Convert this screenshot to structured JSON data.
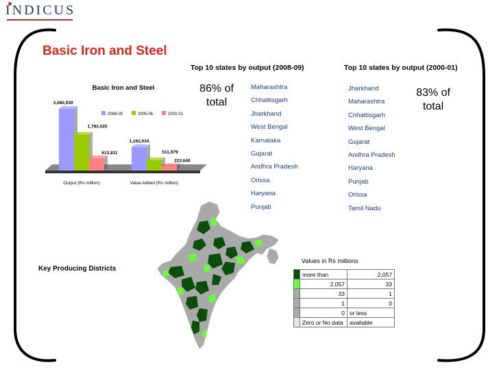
{
  "logo": "INDICUS",
  "page_title": "Basic Iron and Steel",
  "list_2008": {
    "heading": "Top 10 states by output (2008-09)",
    "share": "86% of total",
    "states": [
      "Maharashtra",
      "Chhattisgarh",
      "Jharkhand",
      "West Bengal",
      "Karnataka",
      "Gujarat",
      "Andhra Pradesh",
      "Orissa",
      "Haryana",
      "Punjab"
    ]
  },
  "list_2000": {
    "heading": "Top 10 states by output (2000-01)",
    "share": "83% of total",
    "states": [
      "Jharkhand",
      "Maharashtra",
      "Chhattisgarh",
      "West Bengal",
      "Gujarat",
      "Andhra Pradesh",
      "Haryana",
      "Punjab",
      "Orissa",
      "Tamil Nadu"
    ]
  },
  "chart_data": {
    "type": "bar",
    "title": "Basic Iron and Steel",
    "categories": [
      "Output (Rs million)",
      "Value Added (Rs million)"
    ],
    "series": [
      {
        "name": "2008-09",
        "color": "#9999ff",
        "values": [
          3060939,
          1163034
        ],
        "labels": [
          "3,060,939",
          "1,163,034"
        ]
      },
      {
        "name": "2005-06",
        "color": "#99cc00",
        "values": [
          1783025,
          511979
        ],
        "labels": [
          "1,783,025",
          "511,979"
        ]
      },
      {
        "name": "2000-01",
        "color": "#ff8080",
        "values": [
          613811,
          223646
        ],
        "labels": [
          "613,811",
          "223,646"
        ]
      }
    ],
    "ylim": [
      0,
      3300000
    ],
    "grid": false,
    "legend": "top-right"
  },
  "map": {
    "section_label": "Key Producing Districts",
    "legend_title": "Values in Rs millions",
    "legend_rows": [
      {
        "color": "#0b4d0b",
        "from": "more than",
        "to": "2,057"
      },
      {
        "color": "#66ff33",
        "from": "2,057",
        "to": "33"
      },
      {
        "color": "#aaaaaa",
        "from": "33",
        "to": "1"
      },
      {
        "color": "#aaaaaa",
        "from": "1",
        "to": "0"
      },
      {
        "color": "#aaaaaa",
        "from": "0",
        "to": "or less"
      },
      {
        "color": "#e6e6e6",
        "from": "Zero or No data",
        "to": "available"
      }
    ]
  }
}
